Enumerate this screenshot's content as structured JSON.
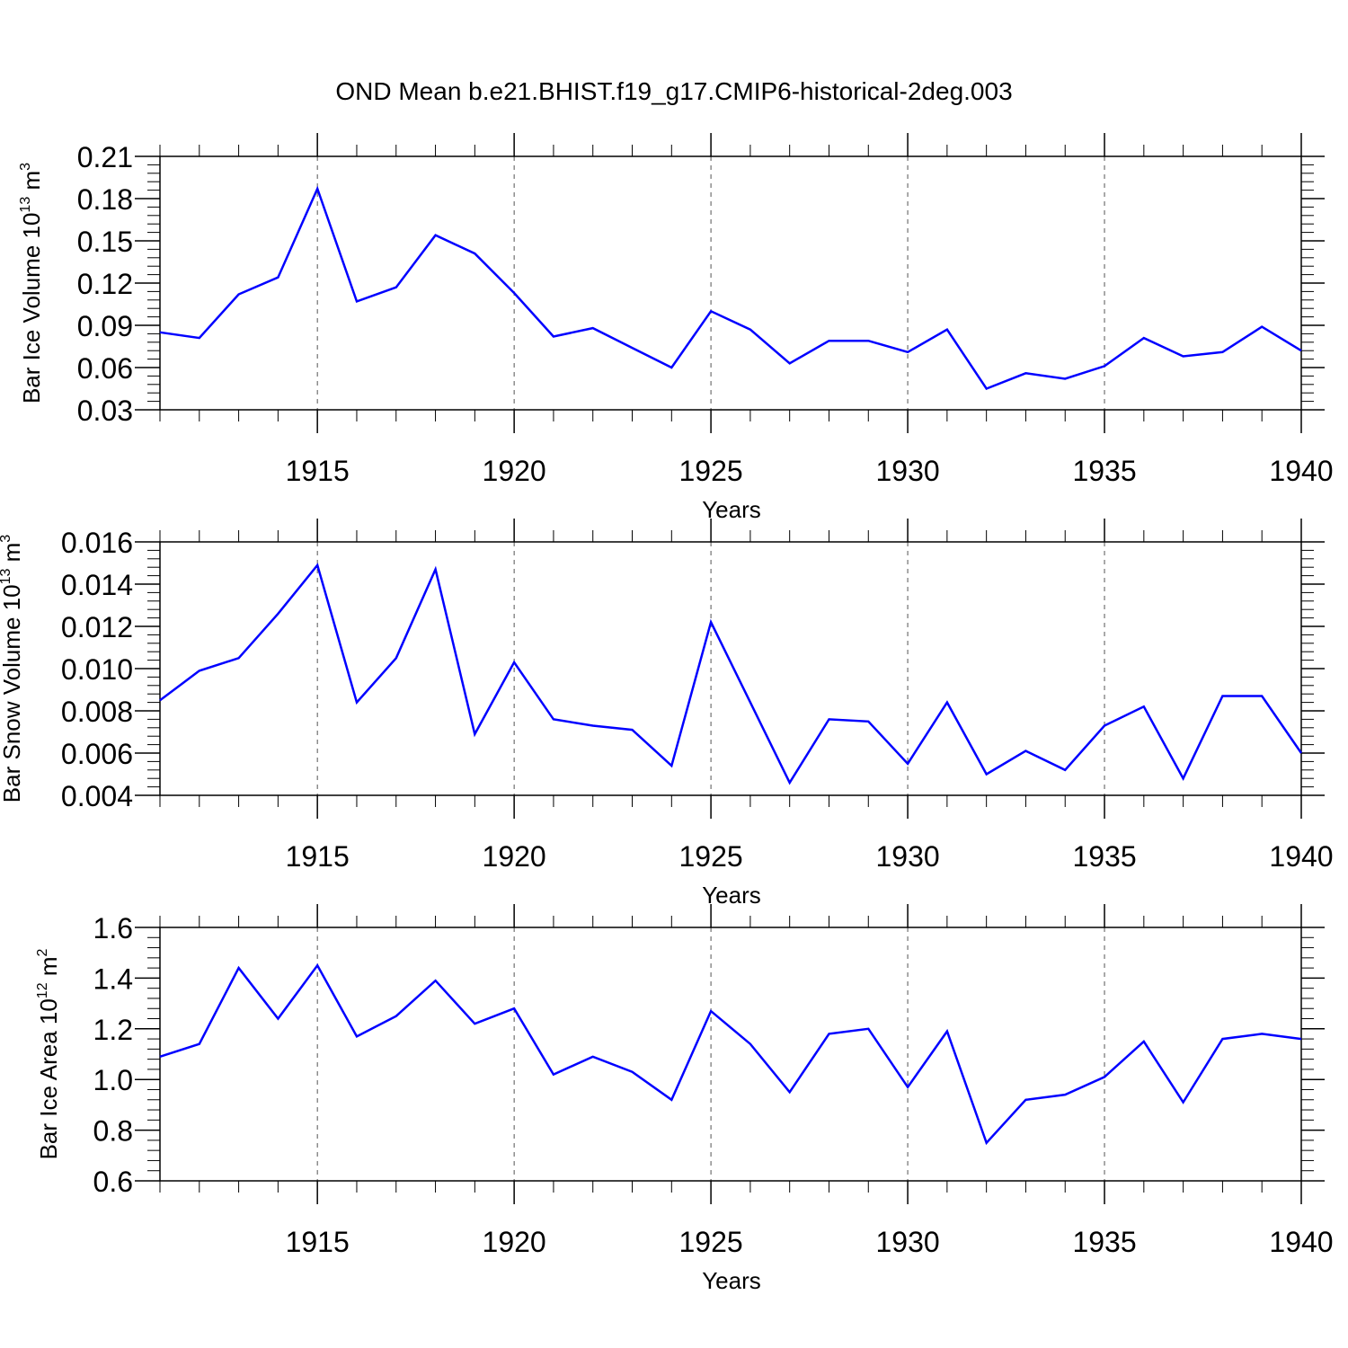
{
  "title": "OND Mean b.e21.BHIST.f19_g17.CMIP6-historical-2deg.003",
  "colors": {
    "series": "#0000ff",
    "axis": "#000000",
    "grid": "#555555"
  },
  "chart_data": [
    {
      "type": "line",
      "xlabel": "Years",
      "ylabel_main": "Bar Ice Volume 10",
      "ylabel_exp": "13",
      "ylabel_unit": " m",
      "ylabel_unit_exp": "3",
      "xlim": [
        1911,
        1940
      ],
      "ylim": [
        0.03,
        0.21
      ],
      "yticks": [
        0.03,
        0.06,
        0.09,
        0.12,
        0.15,
        0.18,
        0.21
      ],
      "ytick_labels": [
        "0.03",
        "0.06",
        "0.09",
        "0.12",
        "0.15",
        "0.18",
        "0.21"
      ],
      "xticks": [
        1915,
        1920,
        1925,
        1930,
        1935,
        1940
      ],
      "xtick_labels": [
        "1915",
        "1920",
        "1925",
        "1930",
        "1935",
        "1940"
      ],
      "x": [
        1911,
        1912,
        1913,
        1914,
        1915,
        1916,
        1917,
        1918,
        1919,
        1920,
        1921,
        1922,
        1923,
        1924,
        1925,
        1926,
        1927,
        1928,
        1929,
        1930,
        1931,
        1932,
        1933,
        1934,
        1935,
        1936,
        1937,
        1938,
        1939,
        1940
      ],
      "values": [
        0.085,
        0.081,
        0.112,
        0.124,
        0.187,
        0.107,
        0.117,
        0.154,
        0.141,
        0.113,
        0.082,
        0.088,
        0.074,
        0.06,
        0.1,
        0.087,
        0.063,
        0.079,
        0.079,
        0.071,
        0.087,
        0.045,
        0.056,
        0.052,
        0.061,
        0.081,
        0.068,
        0.071,
        0.089,
        0.072
      ]
    },
    {
      "type": "line",
      "xlabel": "Years",
      "ylabel_main": "Bar Snow Volume 10",
      "ylabel_exp": "13",
      "ylabel_unit": " m",
      "ylabel_unit_exp": "3",
      "xlim": [
        1911,
        1940
      ],
      "ylim": [
        0.004,
        0.016
      ],
      "yticks": [
        0.004,
        0.006,
        0.008,
        0.01,
        0.012,
        0.014,
        0.016
      ],
      "ytick_labels": [
        "0.004",
        "0.006",
        "0.008",
        "0.010",
        "0.012",
        "0.014",
        "0.016"
      ],
      "xticks": [
        1915,
        1920,
        1925,
        1930,
        1935,
        1940
      ],
      "xtick_labels": [
        "1915",
        "1920",
        "1925",
        "1930",
        "1935",
        "1940"
      ],
      "x": [
        1911,
        1912,
        1913,
        1914,
        1915,
        1916,
        1917,
        1918,
        1919,
        1920,
        1921,
        1922,
        1923,
        1924,
        1925,
        1926,
        1927,
        1928,
        1929,
        1930,
        1931,
        1932,
        1933,
        1934,
        1935,
        1936,
        1937,
        1938,
        1939,
        1940
      ],
      "values": [
        0.0085,
        0.0099,
        0.0105,
        0.0126,
        0.0149,
        0.0084,
        0.0105,
        0.0147,
        0.0069,
        0.0103,
        0.0076,
        0.0073,
        0.0071,
        0.0054,
        0.0122,
        0.0084,
        0.0046,
        0.0076,
        0.0075,
        0.0055,
        0.0084,
        0.005,
        0.0061,
        0.0052,
        0.0073,
        0.0082,
        0.0048,
        0.0087,
        0.0087,
        0.006
      ]
    },
    {
      "type": "line",
      "xlabel": "Years",
      "ylabel_main": "Bar Ice Area 10",
      "ylabel_exp": "12",
      "ylabel_unit": " m",
      "ylabel_unit_exp": "2",
      "xlim": [
        1911,
        1940
      ],
      "ylim": [
        0.6,
        1.6
      ],
      "yticks": [
        0.6,
        0.8,
        1.0,
        1.2,
        1.4,
        1.6
      ],
      "ytick_labels": [
        "0.6",
        "0.8",
        "1.0",
        "1.2",
        "1.4",
        "1.6"
      ],
      "xticks": [
        1915,
        1920,
        1925,
        1930,
        1935,
        1940
      ],
      "xtick_labels": [
        "1915",
        "1920",
        "1925",
        "1930",
        "1935",
        "1940"
      ],
      "x": [
        1911,
        1912,
        1913,
        1914,
        1915,
        1916,
        1917,
        1918,
        1919,
        1920,
        1921,
        1922,
        1923,
        1924,
        1925,
        1926,
        1927,
        1928,
        1929,
        1930,
        1931,
        1932,
        1933,
        1934,
        1935,
        1936,
        1937,
        1938,
        1939,
        1940
      ],
      "values": [
        1.09,
        1.14,
        1.44,
        1.24,
        1.45,
        1.17,
        1.25,
        1.39,
        1.22,
        1.28,
        1.02,
        1.09,
        1.03,
        0.92,
        1.27,
        1.14,
        0.95,
        1.18,
        1.2,
        0.97,
        1.19,
        0.75,
        0.92,
        0.94,
        1.01,
        1.15,
        0.91,
        1.16,
        1.18,
        1.16
      ]
    }
  ]
}
